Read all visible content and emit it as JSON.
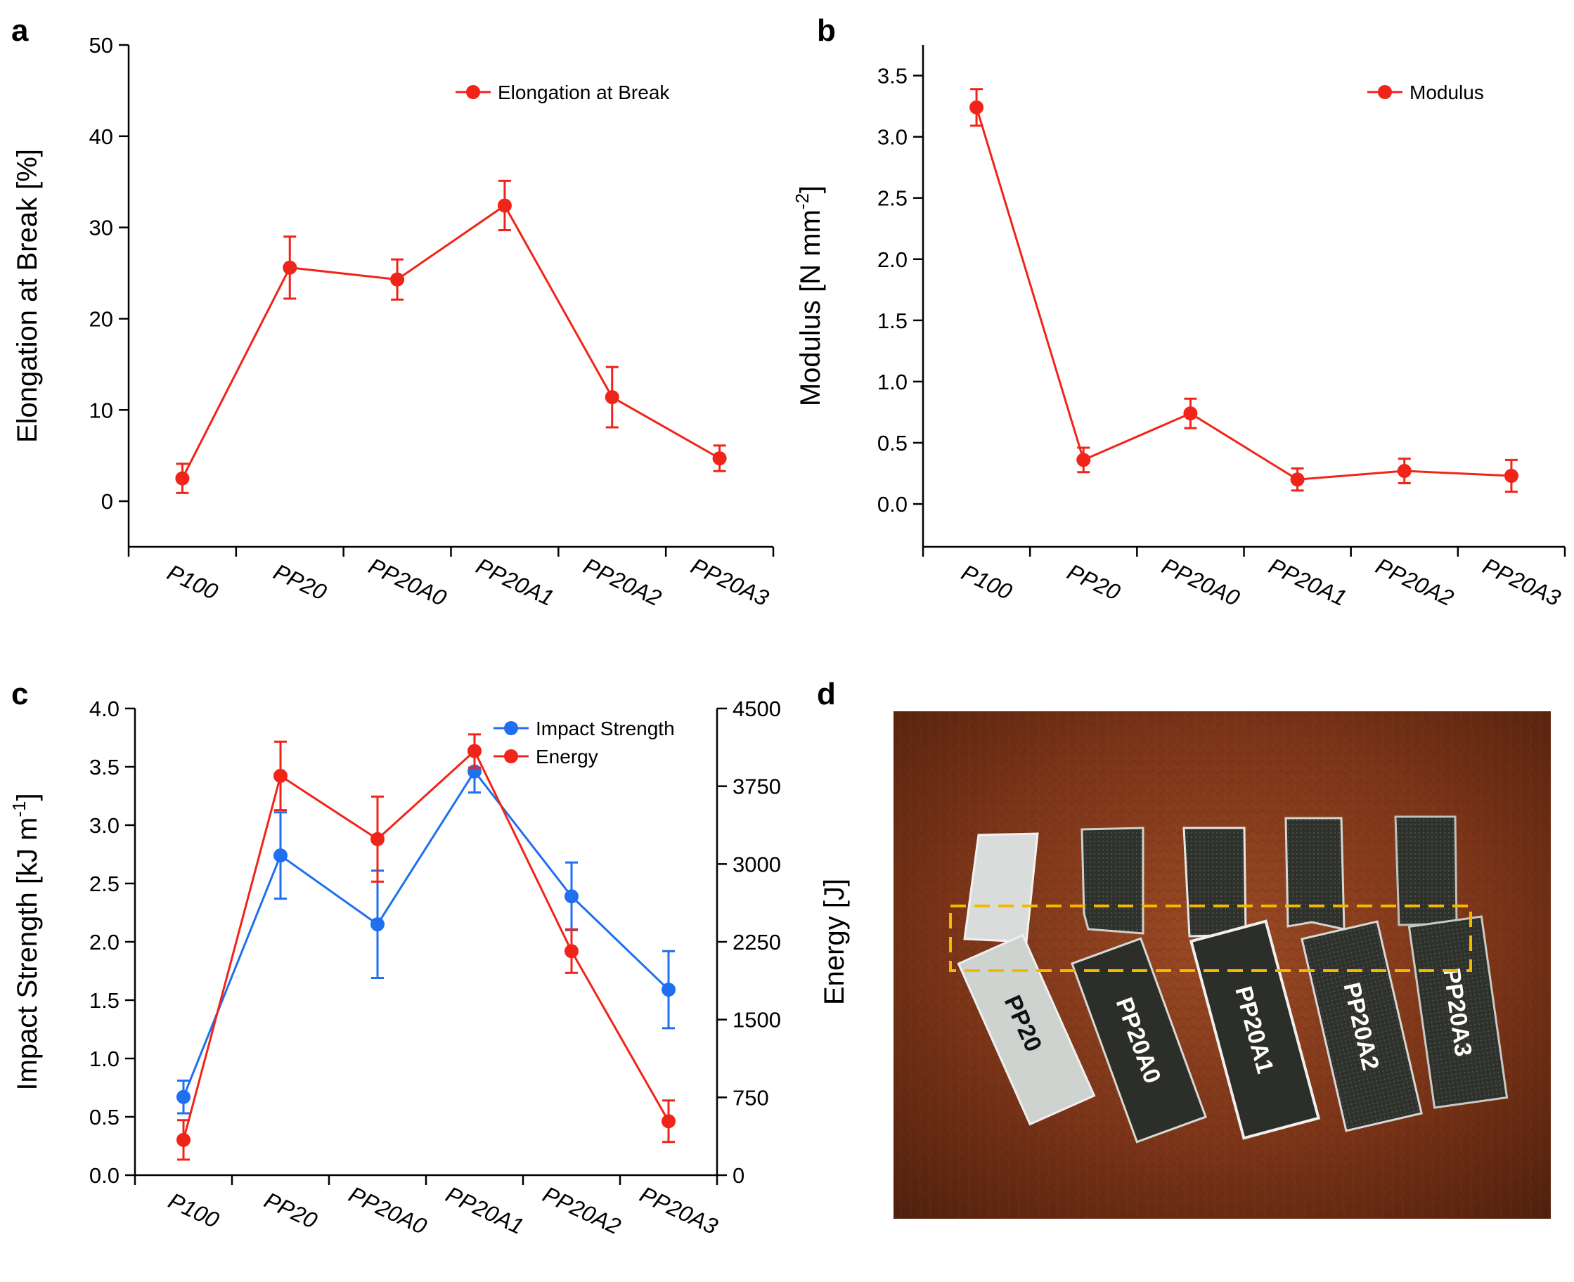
{
  "colors": {
    "red": "#f02418",
    "blue": "#1f6ff0",
    "box": "#f5b800"
  },
  "chart_data": [
    {
      "panel": "a",
      "type": "line",
      "categories": [
        "P100",
        "PP20",
        "PP20A0",
        "PP20A1",
        "PP20A2",
        "PP20A3"
      ],
      "ylabel": "Elongation at Break [%]",
      "ylim": [
        -5,
        50
      ],
      "yticks": [
        0,
        10,
        20,
        30,
        40,
        50
      ],
      "legend": "top-right",
      "series": [
        {
          "name": "Elongation at Break",
          "values": [
            2.5,
            25.6,
            24.3,
            32.4,
            11.4,
            4.7
          ],
          "errors": [
            1.6,
            3.4,
            2.2,
            2.7,
            3.3,
            1.4
          ]
        }
      ]
    },
    {
      "panel": "b",
      "type": "line",
      "categories": [
        "P100",
        "PP20",
        "PP20A0",
        "PP20A1",
        "PP20A2",
        "PP20A3"
      ],
      "ylabel": "Modulus [N mm",
      "ylabel_sup": "-2",
      "ylabel_end": "]",
      "ylim": [
        -0.35,
        3.75
      ],
      "yticks": [
        "0.0",
        "0.5",
        "1.0",
        "1.5",
        "2.0",
        "2.5",
        "3.0",
        "3.5"
      ],
      "legend": "top-right",
      "series": [
        {
          "name": "Modulus",
          "values": [
            3.24,
            0.36,
            0.74,
            0.2,
            0.27,
            0.23
          ],
          "errors": [
            0.15,
            0.1,
            0.12,
            0.09,
            0.1,
            0.13
          ]
        }
      ]
    },
    {
      "panel": "c",
      "type": "line",
      "categories": [
        "P100",
        "PP20",
        "PP20A0",
        "PP20A1",
        "PP20A2",
        "PP20A3"
      ],
      "ylabel": "Impact Strength [kJ m",
      "ylabel_sup": "-1",
      "ylabel_end": "]",
      "ylim": [
        0,
        4
      ],
      "yticks": [
        "0.0",
        "0.5",
        "1.0",
        "1.5",
        "2.0",
        "2.5",
        "3.0",
        "3.5",
        "4.0"
      ],
      "y2label": "Energy [J]",
      "y2lim": [
        0,
        4500
      ],
      "y2ticks": [
        "0",
        "750",
        "1500",
        "2250",
        "3000",
        "3750",
        "4500"
      ],
      "legend": "top-right",
      "series": [
        {
          "name": "Impact Strength",
          "axis": "left",
          "values": [
            0.67,
            2.74,
            2.15,
            3.46,
            2.39,
            1.59
          ],
          "errors": [
            0.14,
            0.37,
            0.46,
            0.18,
            0.29,
            0.33
          ]
        },
        {
          "name": "Energy",
          "axis": "right",
          "values": [
            340,
            3850,
            3240,
            4090,
            2160,
            520
          ],
          "errors": [
            190,
            330,
            410,
            160,
            210,
            200
          ]
        }
      ]
    }
  ],
  "panels": {
    "a": "a",
    "b": "b",
    "c": "c",
    "d": "d"
  },
  "photo": {
    "strip_labels": [
      "PP20",
      "PP20A0",
      "PP20A1",
      "PP20A2",
      "PP20A3"
    ]
  }
}
